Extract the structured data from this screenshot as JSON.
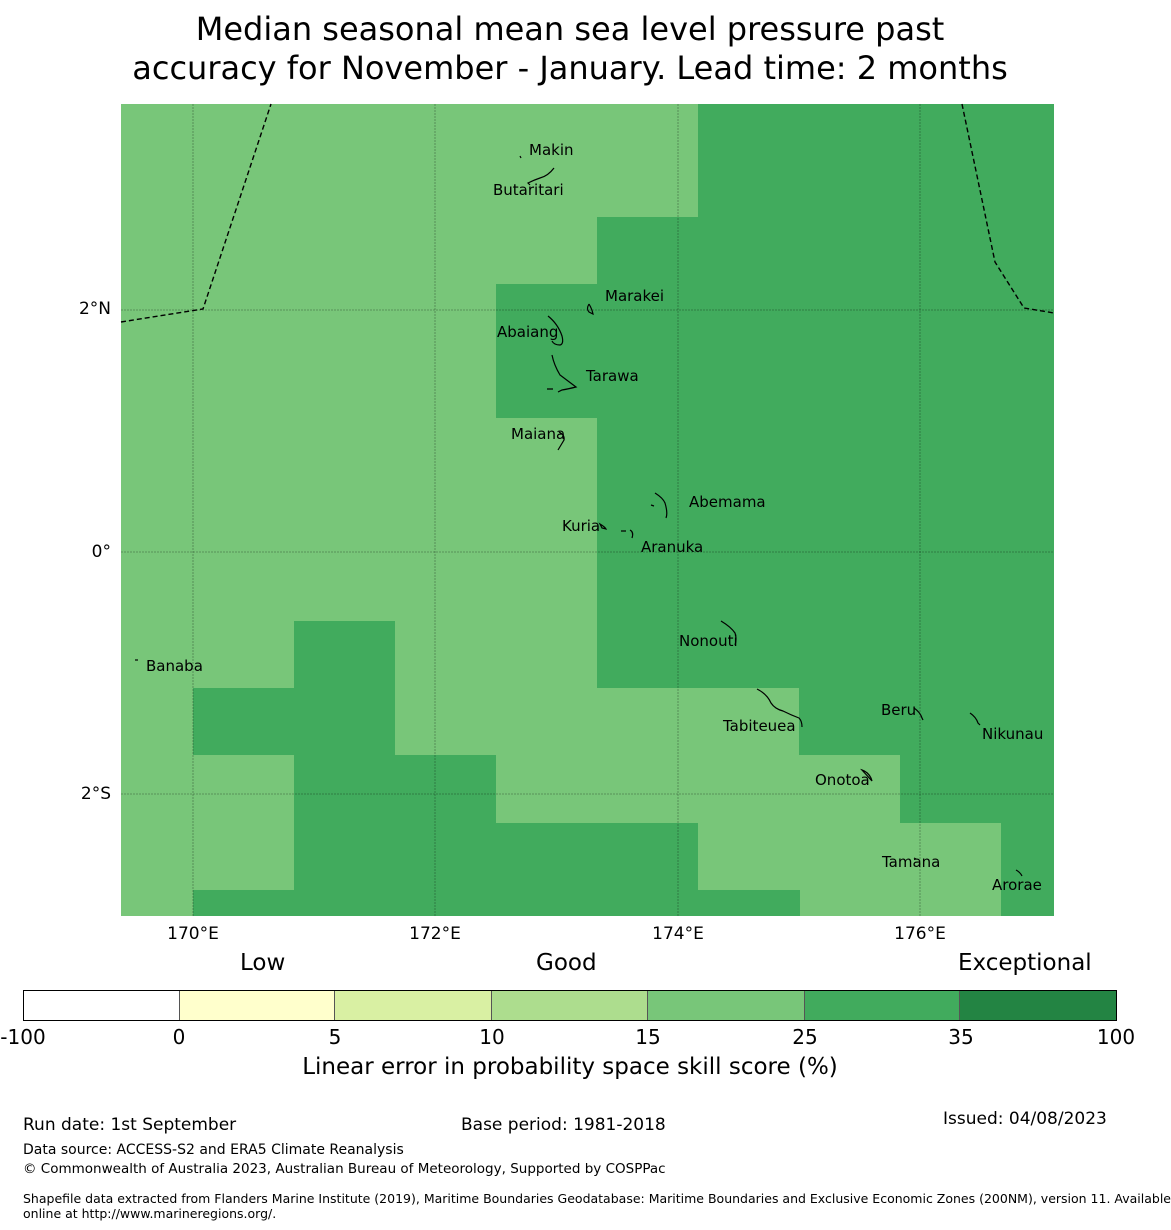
{
  "title": {
    "line1": "Median seasonal mean sea level pressure past",
    "line2": "accuracy for November - January. Lead time: 2 months"
  },
  "map": {
    "lat_ticks": [
      "2°N",
      "0°",
      "2°S"
    ],
    "lon_ticks": [
      "170°E",
      "172°E",
      "174°E",
      "176°E"
    ],
    "places": [
      "Makin",
      "Butaritari",
      "Marakei",
      "Abaiang",
      "Tarawa",
      "Maiana",
      "Abemama",
      "Kuria",
      "Aranuka",
      "Nonouti",
      "Banaba",
      "Beru",
      "Tabiteuea",
      "Nikunau",
      "Onotoa",
      "Tamana",
      "Arorae"
    ],
    "category_colors": {
      "15-25": "#78c679",
      "25-35": "#41ab5d"
    }
  },
  "legend": {
    "categories": [
      "Low",
      "Good",
      "Exceptional"
    ],
    "ticks": [
      "-100",
      "0",
      "5",
      "10",
      "15",
      "25",
      "35",
      "100"
    ],
    "colors": [
      "#ffffff",
      "#ffffcc",
      "#d9f0a3",
      "#addd8e",
      "#78c679",
      "#41ab5d",
      "#238443"
    ],
    "title": "Linear error in probability space skill score (%)"
  },
  "footer": {
    "run_date": "Run date: 1st September",
    "base_period": "Base period: 1981-2018",
    "issued": "Issued: 04/08/2023",
    "data_source": "Data source: ACCESS-S2 and ERA5 Climate Reanalysis",
    "copyright": "© Commonwealth of Australia 2023, Australian Bureau of Meteorology, Supported by COSPPac",
    "shapefile_line1": "Shapefile data extracted from Flanders Marine Institute (2019), Maritime Boundaries Geodatabase: Maritime Boundaries and Exclusive Economic Zones (200NM), version 11. Available",
    "shapefile_line2": "online at http://www.marineregions.org/."
  }
}
